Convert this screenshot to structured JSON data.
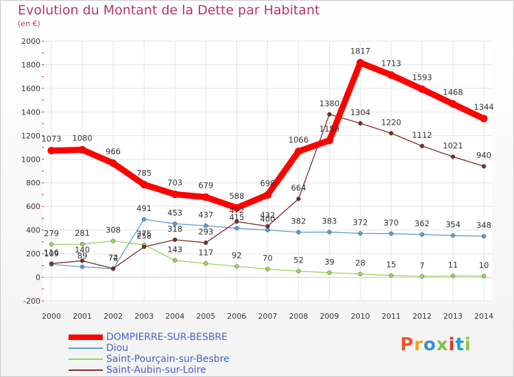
{
  "header": {
    "title": "Evolution du Montant de la Dette par Habitant",
    "unit": "(en €)"
  },
  "logo": {
    "text": "Proxiti",
    "colors": [
      "#e8562a",
      "#f2a51c",
      "#3b8fd6",
      "#7cc242",
      "#e2312d",
      "#1f9bd9",
      "#8ec63f"
    ]
  },
  "chart_data": {
    "type": "line",
    "title": "Evolution du Montant de la Dette par Habitant",
    "ylabel": "(en €)",
    "xlabel": "",
    "x": [
      "2000",
      "2001",
      "2002",
      "2003",
      "2004",
      "2005",
      "2006",
      "2007",
      "2008",
      "2009",
      "2010",
      "2011",
      "2012",
      "2013",
      "2014"
    ],
    "ylim": [
      -200,
      2000
    ],
    "yticks": [
      -200,
      0,
      200,
      400,
      600,
      800,
      1000,
      1200,
      1400,
      1600,
      1800,
      2000
    ],
    "grid": true,
    "legend_position": "bottom-left",
    "series": [
      {
        "name": "DOMPIERRE-SUR-BESBRE",
        "color": "#ff0000",
        "values": [
          1073,
          1080,
          966,
          785,
          703,
          679,
          588,
          698,
          1066,
          1159,
          1817,
          1713,
          1593,
          1468,
          1344
        ]
      },
      {
        "name": "Diou",
        "color": "#5b9bd5",
        "values": [
          109,
          89,
          72,
          491,
          453,
          437,
          415,
          400,
          382,
          383,
          372,
          370,
          362,
          354,
          348
        ]
      },
      {
        "name": "Saint-Pourçain-sur-Besbre",
        "color": "#9ad25a",
        "values": [
          279,
          281,
          308,
          275,
          143,
          117,
          92,
          70,
          52,
          39,
          28,
          15,
          7,
          11,
          10
        ]
      },
      {
        "name": "Saint-Aubin-sur-Loire",
        "color": "#7a2a2a",
        "values": [
          116,
          140,
          74,
          258,
          318,
          293,
          472,
          432,
          664,
          1380,
          1304,
          1220,
          1112,
          1021,
          940
        ]
      }
    ]
  }
}
